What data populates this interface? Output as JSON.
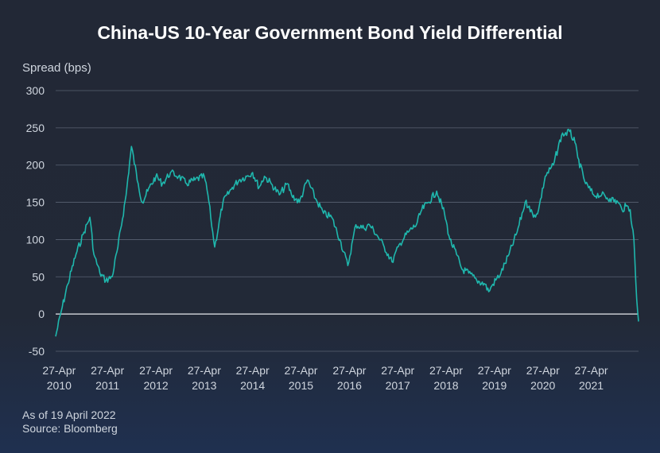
{
  "chart_data": {
    "type": "line",
    "title": "China-US 10-Year Government Bond Yield Differential",
    "ylabel": "Spread (bps)",
    "xlabel": "",
    "ylim": [
      -50,
      300
    ],
    "yticks": [
      -50,
      0,
      50,
      100,
      150,
      200,
      250,
      300
    ],
    "xlim": [
      "2010-04-01",
      "2022-04-19"
    ],
    "xticks": [
      {
        "date": "2010-04-27",
        "line1": "27-Apr",
        "line2": "2010"
      },
      {
        "date": "2011-04-27",
        "line1": "27-Apr",
        "line2": "2011"
      },
      {
        "date": "2012-04-27",
        "line1": "27-Apr",
        "line2": "2012"
      },
      {
        "date": "2013-04-27",
        "line1": "27-Apr",
        "line2": "2013"
      },
      {
        "date": "2014-04-27",
        "line1": "27-Apr",
        "line2": "2014"
      },
      {
        "date": "2015-04-27",
        "line1": "27-Apr",
        "line2": "2015"
      },
      {
        "date": "2016-04-27",
        "line1": "27-Apr",
        "line2": "2016"
      },
      {
        "date": "2017-04-27",
        "line1": "27-Apr",
        "line2": "2017"
      },
      {
        "date": "2018-04-27",
        "line1": "27-Apr",
        "line2": "2018"
      },
      {
        "date": "2019-04-27",
        "line1": "27-Apr",
        "line2": "2019"
      },
      {
        "date": "2020-04-27",
        "line1": "27-Apr",
        "line2": "2020"
      },
      {
        "date": "2021-04-27",
        "line1": "27-Apr",
        "line2": "2021"
      }
    ],
    "grid": true,
    "line_color": "#1fb7ad",
    "series": [
      {
        "name": "",
        "x": [
          "2010-04-01",
          "2010-05-15",
          "2010-07-01",
          "2010-09-01",
          "2010-11-01",
          "2010-12-15",
          "2011-01-15",
          "2011-03-01",
          "2011-04-15",
          "2011-06-01",
          "2011-07-15",
          "2011-09-15",
          "2011-10-25",
          "2011-12-15",
          "2012-01-15",
          "2012-02-25",
          "2012-04-27",
          "2012-06-15",
          "2012-08-15",
          "2012-10-15",
          "2012-12-15",
          "2013-02-15",
          "2013-04-27",
          "2013-05-25",
          "2013-06-15",
          "2013-07-15",
          "2013-09-15",
          "2013-11-25",
          "2014-01-15",
          "2014-03-15",
          "2014-04-27",
          "2014-06-15",
          "2014-07-25",
          "2014-09-15",
          "2014-11-15",
          "2015-01-15",
          "2015-02-15",
          "2015-04-15",
          "2015-06-15",
          "2015-08-15",
          "2015-10-15",
          "2015-12-15",
          "2016-02-15",
          "2016-04-15",
          "2016-06-15",
          "2016-08-15",
          "2016-09-25",
          "2016-11-25",
          "2017-01-15",
          "2017-03-15",
          "2017-05-15",
          "2017-07-15",
          "2017-09-15",
          "2017-10-25",
          "2017-12-15",
          "2018-02-15",
          "2018-04-15",
          "2018-05-25",
          "2018-07-15",
          "2018-08-25",
          "2018-10-15",
          "2018-12-15",
          "2019-02-15",
          "2019-03-15",
          "2019-04-15",
          "2019-06-15",
          "2019-08-15",
          "2019-10-15",
          "2019-12-15",
          "2020-01-15",
          "2020-02-15",
          "2020-03-25",
          "2020-05-15",
          "2020-07-15",
          "2020-09-15",
          "2020-11-15",
          "2020-12-25",
          "2021-01-15",
          "2021-03-15",
          "2021-05-15",
          "2021-07-15",
          "2021-09-15",
          "2021-11-15",
          "2021-12-15",
          "2022-01-15",
          "2022-02-15",
          "2022-03-15",
          "2022-04-05",
          "2022-04-19"
        ],
        "values": [
          -30,
          5,
          40,
          80,
          110,
          130,
          80,
          55,
          45,
          50,
          90,
          160,
          225,
          175,
          150,
          165,
          185,
          175,
          190,
          185,
          175,
          180,
          185,
          160,
          130,
          90,
          150,
          170,
          180,
          185,
          190,
          170,
          185,
          175,
          160,
          175,
          160,
          150,
          180,
          155,
          135,
          130,
          100,
          65,
          120,
          115,
          120,
          105,
          90,
          70,
          95,
          110,
          120,
          140,
          150,
          165,
          135,
          100,
          80,
          60,
          55,
          45,
          40,
          30,
          40,
          55,
          80,
          110,
          150,
          145,
          130,
          140,
          185,
          200,
          240,
          245,
          230,
          210,
          175,
          160,
          160,
          155,
          150,
          140,
          145,
          140,
          100,
          20,
          -10
        ]
      }
    ]
  },
  "footnote": {
    "line1": "As of 19 April 2022",
    "line2": "Source: Bloomberg"
  }
}
